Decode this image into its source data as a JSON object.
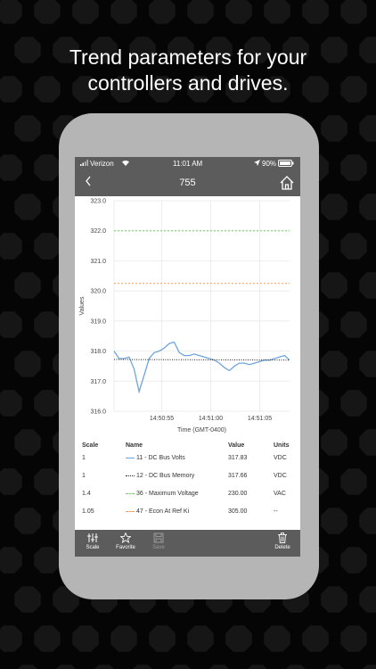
{
  "headline": {
    "line1": "Trend parameters for your",
    "line2": "controllers and drives."
  },
  "status_bar": {
    "carrier": "Verizon",
    "time": "11:01 AM",
    "battery": "90%"
  },
  "nav": {
    "title": "755",
    "back_icon": "chevron-left-icon",
    "home_icon": "home-icon"
  },
  "chart_data": {
    "type": "line",
    "ylabel": "Values",
    "xlabel": "Time (GMT-0400)",
    "ylim": [
      316.0,
      323.0
    ],
    "y_ticks": [
      "323.0",
      "322.0",
      "321.0",
      "320.0",
      "319.0",
      "318.0",
      "317.0",
      "316.0"
    ],
    "x_ticks": [
      "14:50:55",
      "14:51:00",
      "14:51:05"
    ],
    "grid": true,
    "series": [
      {
        "name": "11 - DC Bus Volts",
        "color": "#6fa5dc",
        "style": "solid",
        "x": [
          0,
          1,
          2,
          3,
          4,
          5,
          6,
          7,
          8,
          9,
          10,
          11,
          12,
          13,
          14,
          15,
          16,
          17,
          18,
          19,
          20,
          21,
          22,
          23,
          24,
          25,
          26,
          27,
          28,
          29,
          30,
          31,
          32,
          33,
          34,
          35
        ],
        "y": [
          318.0,
          317.75,
          317.75,
          317.8,
          317.4,
          316.65,
          317.2,
          317.75,
          317.95,
          318.0,
          318.1,
          318.25,
          318.3,
          317.95,
          317.85,
          317.85,
          317.9,
          317.85,
          317.8,
          317.75,
          317.7,
          317.6,
          317.45,
          317.35,
          317.5,
          317.6,
          317.6,
          317.55,
          317.6,
          317.65,
          317.7,
          317.7,
          317.75,
          317.8,
          317.85,
          317.7
        ]
      },
      {
        "name": "12 - DC Bus Memory",
        "color": "#222222",
        "style": "dotted",
        "x": [
          0,
          35
        ],
        "y": [
          317.72,
          317.7
        ]
      },
      {
        "name": "36 - Maximum Voltage",
        "color": "#7bc96f",
        "style": "dashed",
        "x": [
          0,
          35
        ],
        "y": [
          322.0,
          322.0
        ]
      },
      {
        "name": "47 - Econ At Ref Ki",
        "color": "#f0a05a",
        "style": "dashed",
        "x": [
          0,
          35
        ],
        "y": [
          320.25,
          320.25
        ]
      }
    ]
  },
  "table": {
    "headers": {
      "scale": "Scale",
      "name": "Name",
      "value": "Value",
      "units": "Units"
    },
    "rows": [
      {
        "scale": "1",
        "name": "11 - DC Bus Volts",
        "value": "317.83",
        "units": "VDC",
        "color": "#6fa5dc",
        "style": "solid"
      },
      {
        "scale": "1",
        "name": "12 - DC Bus Memory",
        "value": "317.66",
        "units": "VDC",
        "color": "#222222",
        "style": "dotted"
      },
      {
        "scale": "1.4",
        "name": "36 - Maximum Voltage",
        "value": "230.00",
        "units": "VAC",
        "color": "#7bc96f",
        "style": "dashed"
      },
      {
        "scale": "1.05",
        "name": "47 - Econ At Ref Ki",
        "value": "305.00",
        "units": "--",
        "color": "#f0a05a",
        "style": "dashed"
      }
    ]
  },
  "toolbar": {
    "scale": "Scale",
    "favorite": "Favorite",
    "save": "Save",
    "delete": "Delete",
    "scale_icon": "sliders-icon",
    "favorite_icon": "star-icon",
    "save_icon": "floppy-disk-icon",
    "delete_icon": "trash-icon"
  }
}
